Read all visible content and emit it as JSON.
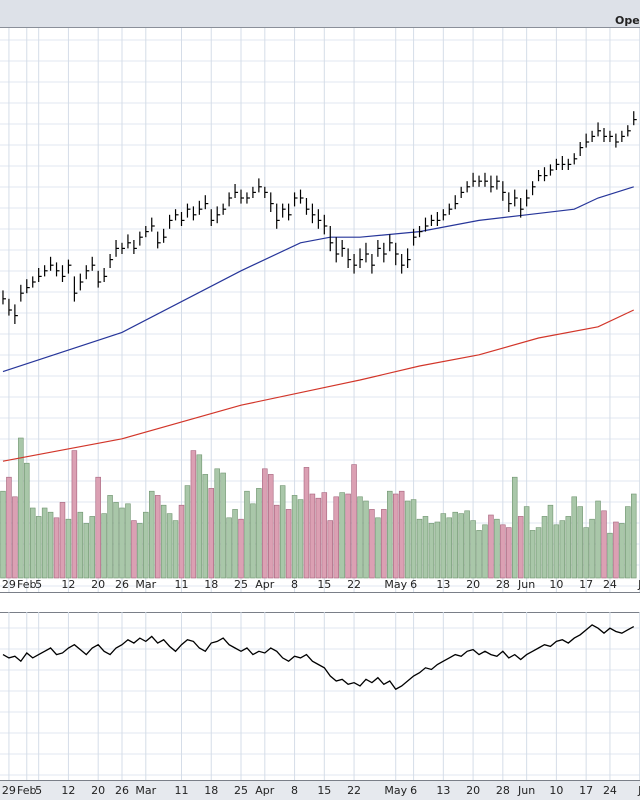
{
  "header": {
    "label": "Ope"
  },
  "chart_data": [
    {
      "type": "ohlc",
      "xlim": [
        -0.5,
        107.05
      ],
      "ylim": [
        0,
        100
      ],
      "bar_color": "#000000",
      "close": [
        52,
        50,
        49,
        53,
        54,
        55,
        56,
        57,
        58,
        57,
        56,
        58,
        53,
        55,
        57,
        58,
        55,
        56,
        59,
        61,
        61,
        62,
        61,
        63,
        64,
        65,
        62,
        63,
        66,
        67,
        66,
        68,
        67,
        68,
        69,
        66,
        67,
        68,
        70,
        71,
        70,
        70,
        71,
        72,
        71,
        69,
        66,
        68,
        67,
        70,
        70,
        68,
        67,
        66,
        65,
        62,
        60,
        61,
        59,
        58,
        59,
        60,
        58,
        61,
        60,
        62,
        60,
        58,
        59,
        63,
        64,
        65,
        66,
        66,
        67,
        68,
        69,
        71,
        72,
        73,
        73,
        73,
        72,
        73,
        71,
        69,
        70,
        68,
        70,
        72,
        74,
        74,
        75,
        76,
        76,
        76,
        77,
        79,
        80,
        81,
        82,
        81,
        81,
        80,
        81,
        82,
        84
      ],
      "high": [
        53.5,
        52,
        51,
        54.5,
        55.5,
        56,
        57.5,
        58,
        59.5,
        58.5,
        58,
        59,
        56,
        56.5,
        58,
        59.5,
        57,
        57.5,
        60,
        62.5,
        62,
        63.5,
        62.5,
        64,
        65,
        66.5,
        64,
        64.5,
        67,
        68,
        67.5,
        69,
        68.5,
        69.5,
        70.5,
        68,
        68.5,
        69,
        71,
        72.5,
        71.5,
        71,
        72,
        73.5,
        72,
        71,
        69,
        69,
        69,
        71,
        71.5,
        70,
        69,
        68,
        67,
        65,
        63,
        62.5,
        61,
        60,
        61,
        62,
        60,
        62.5,
        62,
        63.5,
        62,
        60,
        61,
        64.5,
        65,
        66.5,
        67,
        67.5,
        68,
        69,
        70.5,
        72,
        73,
        74.5,
        74,
        74.5,
        74,
        74,
        73,
        71,
        71.5,
        70,
        71.5,
        73,
        75,
        75.5,
        76,
        77,
        77.5,
        77,
        78,
        80,
        81.5,
        82,
        83.5,
        82.5,
        82,
        81.5,
        82,
        83,
        85.5
      ],
      "low": [
        51,
        49,
        47.5,
        51.5,
        53,
        54,
        55,
        56,
        57,
        56,
        55,
        56.5,
        51.5,
        53.5,
        55.5,
        57,
        54,
        55,
        57.5,
        59.5,
        60,
        61,
        60,
        61.5,
        63,
        64,
        61,
        62,
        64.5,
        66,
        65,
        66.5,
        66,
        67,
        68,
        65,
        65.5,
        67,
        68.5,
        70,
        69,
        69,
        70,
        71,
        70,
        67.5,
        64.5,
        66.5,
        66,
        68.5,
        69,
        67,
        65.5,
        64.5,
        63.5,
        60.5,
        58.5,
        59.5,
        57.5,
        56.5,
        57.5,
        58.5,
        56.5,
        59.5,
        58.5,
        60.5,
        58,
        56.5,
        57.5,
        61.5,
        63,
        64,
        65,
        65,
        66,
        67,
        68,
        70,
        71,
        72,
        72,
        72,
        71,
        71.5,
        69.5,
        67.5,
        68.5,
        66.5,
        68.5,
        70.5,
        73,
        73,
        74,
        75,
        75,
        75,
        76,
        77.5,
        79,
        80,
        81,
        80,
        80,
        79,
        80,
        81,
        83
      ],
      "lines": [
        {
          "color": "#27369a",
          "x": [
            0,
            20,
            40,
            50,
            55,
            60,
            70,
            80,
            88,
            96,
            100,
            106
          ],
          "values": [
            39,
            46,
            57,
            62,
            63,
            63,
            64,
            66,
            67,
            68,
            70,
            72
          ]
        },
        {
          "color": "#d2362a",
          "x": [
            0,
            20,
            40,
            60,
            70,
            80,
            90,
            100,
            106
          ],
          "values": [
            23,
            27,
            33,
            37.5,
            40,
            42,
            45,
            47,
            50
          ]
        }
      ]
    },
    {
      "type": "bar",
      "xlim": [
        -0.5,
        107.05
      ],
      "ylim": [
        0,
        100
      ],
      "up_color": "#a9c7a9",
      "down_color": "#dba0b3",
      "values": [
        62,
        72,
        58,
        100,
        82,
        50,
        44,
        50,
        47,
        43,
        54,
        42,
        91,
        47,
        39,
        44,
        72,
        46,
        59,
        54,
        50,
        53,
        41,
        39,
        47,
        62,
        59,
        52,
        46,
        41,
        52,
        66,
        91,
        88,
        74,
        64,
        78,
        75,
        43,
        49,
        42,
        62,
        53,
        64,
        78,
        74,
        52,
        66,
        49,
        59,
        56,
        79,
        60,
        57,
        61,
        41,
        58,
        61,
        60,
        81,
        58,
        55,
        49,
        43,
        49,
        62,
        60,
        62,
        55,
        56,
        42,
        44,
        39,
        40,
        46,
        43,
        47,
        46,
        48,
        41,
        34,
        38,
        45,
        42,
        38,
        36,
        72,
        44,
        51,
        34,
        36,
        44,
        52,
        38,
        41,
        44,
        58,
        51,
        36,
        42,
        55,
        48,
        32,
        40,
        39,
        51,
        60
      ],
      "xticks": [
        {
          "value": 1,
          "label": "29"
        },
        {
          "value": 4,
          "label": "Feb"
        },
        {
          "value": 6,
          "label": "5"
        },
        {
          "value": 11,
          "label": "12"
        },
        {
          "value": 16,
          "label": "20"
        },
        {
          "value": 20,
          "label": "26"
        },
        {
          "value": 24,
          "label": "Mar"
        },
        {
          "value": 30,
          "label": "11"
        },
        {
          "value": 35,
          "label": "18"
        },
        {
          "value": 40,
          "label": "25"
        },
        {
          "value": 44,
          "label": "Apr"
        },
        {
          "value": 49,
          "label": "8"
        },
        {
          "value": 54,
          "label": "15"
        },
        {
          "value": 59,
          "label": "22"
        },
        {
          "value": 66,
          "label": "May"
        },
        {
          "value": 69,
          "label": "6"
        },
        {
          "value": 74,
          "label": "13"
        },
        {
          "value": 79,
          "label": "20"
        },
        {
          "value": 84,
          "label": "28"
        },
        {
          "value": 88,
          "label": "Jun"
        },
        {
          "value": 93,
          "label": "10"
        },
        {
          "value": 98,
          "label": "17"
        },
        {
          "value": 102,
          "label": "24"
        },
        {
          "value": 107,
          "label": "J"
        }
      ]
    },
    {
      "type": "line",
      "xlim": [
        -0.5,
        107.05
      ],
      "ylim": [
        0,
        100
      ],
      "color": "#000000",
      "values": [
        76,
        74,
        75,
        72,
        77,
        74,
        76,
        78,
        80,
        76,
        77,
        80,
        82,
        79,
        76,
        80,
        82,
        78,
        76,
        80,
        82,
        85,
        83,
        86,
        84,
        87,
        83,
        85,
        81,
        78,
        82,
        85,
        84,
        80,
        78,
        83,
        84,
        86,
        82,
        80,
        78,
        80,
        76,
        78,
        77,
        80,
        78,
        74,
        72,
        75,
        74,
        76,
        72,
        70,
        68,
        63,
        60,
        61,
        58,
        59,
        57,
        61,
        59,
        62,
        58,
        60,
        55,
        57,
        60,
        63,
        65,
        68,
        67,
        70,
        72,
        74,
        76,
        75,
        78,
        79,
        76,
        78,
        76,
        75,
        78,
        74,
        76,
        73,
        76,
        78,
        80,
        82,
        81,
        84,
        85,
        83,
        86,
        88,
        91,
        94,
        92,
        89,
        92,
        90,
        89,
        91,
        93
      ],
      "xticks": [
        {
          "value": 1,
          "label": "29"
        },
        {
          "value": 4,
          "label": "Feb"
        },
        {
          "value": 6,
          "label": "5"
        },
        {
          "value": 11,
          "label": "12"
        },
        {
          "value": 16,
          "label": "20"
        },
        {
          "value": 20,
          "label": "26"
        },
        {
          "value": 24,
          "label": "Mar"
        },
        {
          "value": 30,
          "label": "11"
        },
        {
          "value": 35,
          "label": "18"
        },
        {
          "value": 40,
          "label": "25"
        },
        {
          "value": 44,
          "label": "Apr"
        },
        {
          "value": 49,
          "label": "8"
        },
        {
          "value": 54,
          "label": "15"
        },
        {
          "value": 59,
          "label": "22"
        },
        {
          "value": 66,
          "label": "May"
        },
        {
          "value": 69,
          "label": "6"
        },
        {
          "value": 74,
          "label": "13"
        },
        {
          "value": 79,
          "label": "20"
        },
        {
          "value": 84,
          "label": "28"
        },
        {
          "value": 88,
          "label": "Jun"
        },
        {
          "value": 93,
          "label": "10"
        },
        {
          "value": 98,
          "label": "17"
        },
        {
          "value": 102,
          "label": "24"
        },
        {
          "value": 107,
          "label": "J"
        }
      ]
    }
  ]
}
